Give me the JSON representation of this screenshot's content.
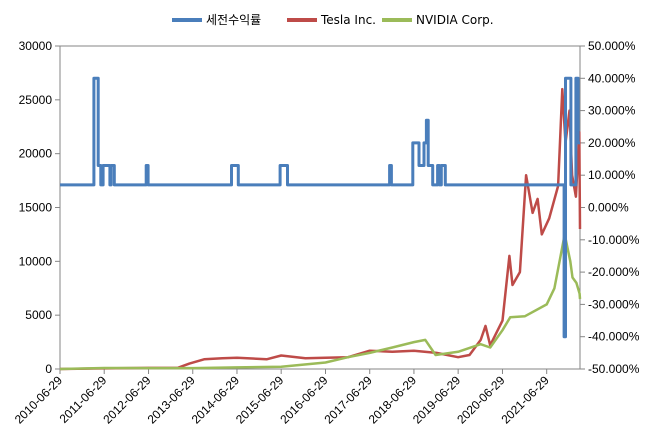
{
  "chart_data": {
    "type": "line",
    "title": "",
    "legend_position": "top",
    "grid": false,
    "x_tick_labels": [
      "2010-06-29",
      "2011-06-29",
      "2012-06-29",
      "2013-06-29",
      "2014-06-29",
      "2015-06-29",
      "2016-06-29",
      "2017-06-29",
      "2018-06-29",
      "2019-06-29",
      "2020-06-29",
      "2021-06-29"
    ],
    "x_range": [
      "2010-06-29",
      "2022-03-31"
    ],
    "y_left": {
      "min": 0,
      "max": 30000,
      "ticks": [
        "0",
        "5000",
        "10000",
        "15000",
        "20000",
        "25000",
        "30000"
      ]
    },
    "y_right": {
      "min": -50,
      "max": 50,
      "ticks": [
        "-50.000%",
        "-40.000%",
        "-30.000%",
        "-20.000%",
        "-10.000%",
        "0.000%",
        "10.000%",
        "20.000%",
        "30.000%",
        "40.000%",
        "50.000%"
      ]
    },
    "series": [
      {
        "name": "세전수익률",
        "axis": "right",
        "color": "#4a7ebb",
        "step": true,
        "points": [
          [
            "2010-06-29",
            7
          ],
          [
            "2011-04-05",
            7
          ],
          [
            "2011-04-05",
            40
          ],
          [
            "2011-05-10",
            40
          ],
          [
            "2011-05-10",
            13
          ],
          [
            "2011-06-01",
            13
          ],
          [
            "2011-06-01",
            7
          ],
          [
            "2011-06-20",
            7
          ],
          [
            "2011-06-20",
            13
          ],
          [
            "2011-08-15",
            13
          ],
          [
            "2011-08-15",
            7
          ],
          [
            "2011-08-25",
            7
          ],
          [
            "2011-08-25",
            13
          ],
          [
            "2011-09-20",
            13
          ],
          [
            "2011-09-20",
            7
          ],
          [
            "2012-06-10",
            7
          ],
          [
            "2012-06-10",
            13
          ],
          [
            "2012-06-25",
            13
          ],
          [
            "2012-06-25",
            7
          ],
          [
            "2014-05-15",
            7
          ],
          [
            "2014-05-15",
            13
          ],
          [
            "2014-07-10",
            13
          ],
          [
            "2014-07-10",
            7
          ],
          [
            "2015-06-20",
            7
          ],
          [
            "2015-06-20",
            13
          ],
          [
            "2015-08-20",
            13
          ],
          [
            "2015-08-20",
            7
          ],
          [
            "2017-12-10",
            7
          ],
          [
            "2017-12-10",
            13
          ],
          [
            "2017-12-25",
            13
          ],
          [
            "2017-12-25",
            7
          ],
          [
            "2018-06-20",
            7
          ],
          [
            "2018-06-20",
            20
          ],
          [
            "2018-08-10",
            20
          ],
          [
            "2018-08-10",
            13
          ],
          [
            "2018-09-20",
            13
          ],
          [
            "2018-09-20",
            20
          ],
          [
            "2018-10-10",
            20
          ],
          [
            "2018-10-10",
            27
          ],
          [
            "2018-10-25",
            27
          ],
          [
            "2018-10-25",
            13
          ],
          [
            "2018-12-01",
            13
          ],
          [
            "2018-12-01",
            7
          ],
          [
            "2019-01-10",
            7
          ],
          [
            "2019-01-10",
            13
          ],
          [
            "2019-01-25",
            13
          ],
          [
            "2019-01-25",
            7
          ],
          [
            "2019-02-10",
            7
          ],
          [
            "2019-02-10",
            13
          ],
          [
            "2019-03-15",
            13
          ],
          [
            "2019-03-15",
            7
          ],
          [
            "2021-11-20",
            7
          ],
          [
            "2021-11-20",
            -40
          ],
          [
            "2021-12-01",
            -40
          ],
          [
            "2021-12-01",
            40
          ],
          [
            "2022-01-15",
            40
          ],
          [
            "2022-01-15",
            7
          ],
          [
            "2022-02-25",
            7
          ],
          [
            "2022-02-25",
            40
          ],
          [
            "2022-03-15",
            40
          ],
          [
            "2022-03-15",
            20
          ],
          [
            "2022-03-31",
            20
          ]
        ]
      },
      {
        "name": "Tesla Inc.",
        "axis": "left",
        "color": "#be4b48",
        "points": [
          [
            "2010-06-29",
            0
          ],
          [
            "2011-06-29",
            60
          ],
          [
            "2012-06-29",
            100
          ],
          [
            "2013-03-01",
            120
          ],
          [
            "2013-06-01",
            500
          ],
          [
            "2013-10-01",
            900
          ],
          [
            "2014-03-01",
            1000
          ],
          [
            "2014-06-29",
            1050
          ],
          [
            "2015-03-01",
            900
          ],
          [
            "2015-06-29",
            1250
          ],
          [
            "2016-01-15",
            1000
          ],
          [
            "2016-06-29",
            1050
          ],
          [
            "2017-01-01",
            1100
          ],
          [
            "2017-06-29",
            1700
          ],
          [
            "2018-01-01",
            1600
          ],
          [
            "2018-06-29",
            1700
          ],
          [
            "2019-01-01",
            1500
          ],
          [
            "2019-06-29",
            1100
          ],
          [
            "2019-10-01",
            1300
          ],
          [
            "2020-01-01",
            2700
          ],
          [
            "2020-02-10",
            4000
          ],
          [
            "2020-03-20",
            2200
          ],
          [
            "2020-06-29",
            4500
          ],
          [
            "2020-08-25",
            10500
          ],
          [
            "2020-09-20",
            7800
          ],
          [
            "2020-11-20",
            9000
          ],
          [
            "2021-01-10",
            18000
          ],
          [
            "2021-03-05",
            14500
          ],
          [
            "2021-04-15",
            15800
          ],
          [
            "2021-05-20",
            12500
          ],
          [
            "2021-07-20",
            14000
          ],
          [
            "2021-10-01",
            17000
          ],
          [
            "2021-11-05",
            26000
          ],
          [
            "2021-12-01",
            21000
          ],
          [
            "2022-01-03",
            24000
          ],
          [
            "2022-01-25",
            18000
          ],
          [
            "2022-02-25",
            16000
          ],
          [
            "2022-03-25",
            22000
          ],
          [
            "2022-03-31",
            13000
          ]
        ]
      },
      {
        "name": "NVIDIA Corp.",
        "axis": "left",
        "color": "#9bbb59",
        "points": [
          [
            "2010-06-29",
            0
          ],
          [
            "2011-06-29",
            90
          ],
          [
            "2012-06-29",
            80
          ],
          [
            "2013-06-29",
            80
          ],
          [
            "2014-06-29",
            150
          ],
          [
            "2015-06-29",
            200
          ],
          [
            "2016-06-29",
            600
          ],
          [
            "2017-01-01",
            1100
          ],
          [
            "2017-06-29",
            1500
          ],
          [
            "2018-01-01",
            2000
          ],
          [
            "2018-06-29",
            2500
          ],
          [
            "2018-10-01",
            2700
          ],
          [
            "2018-12-25",
            1300
          ],
          [
            "2019-06-29",
            1600
          ],
          [
            "2019-12-31",
            2300
          ],
          [
            "2020-03-20",
            2000
          ],
          [
            "2020-06-29",
            3600
          ],
          [
            "2020-09-01",
            4800
          ],
          [
            "2021-01-01",
            4900
          ],
          [
            "2021-06-29",
            6000
          ],
          [
            "2021-09-01",
            7500
          ],
          [
            "2021-11-25",
            12500
          ],
          [
            "2022-01-10",
            10000
          ],
          [
            "2022-01-28",
            8500
          ],
          [
            "2022-03-01",
            8000
          ],
          [
            "2022-03-28",
            7000
          ],
          [
            "2022-03-31",
            6500
          ]
        ]
      }
    ]
  }
}
